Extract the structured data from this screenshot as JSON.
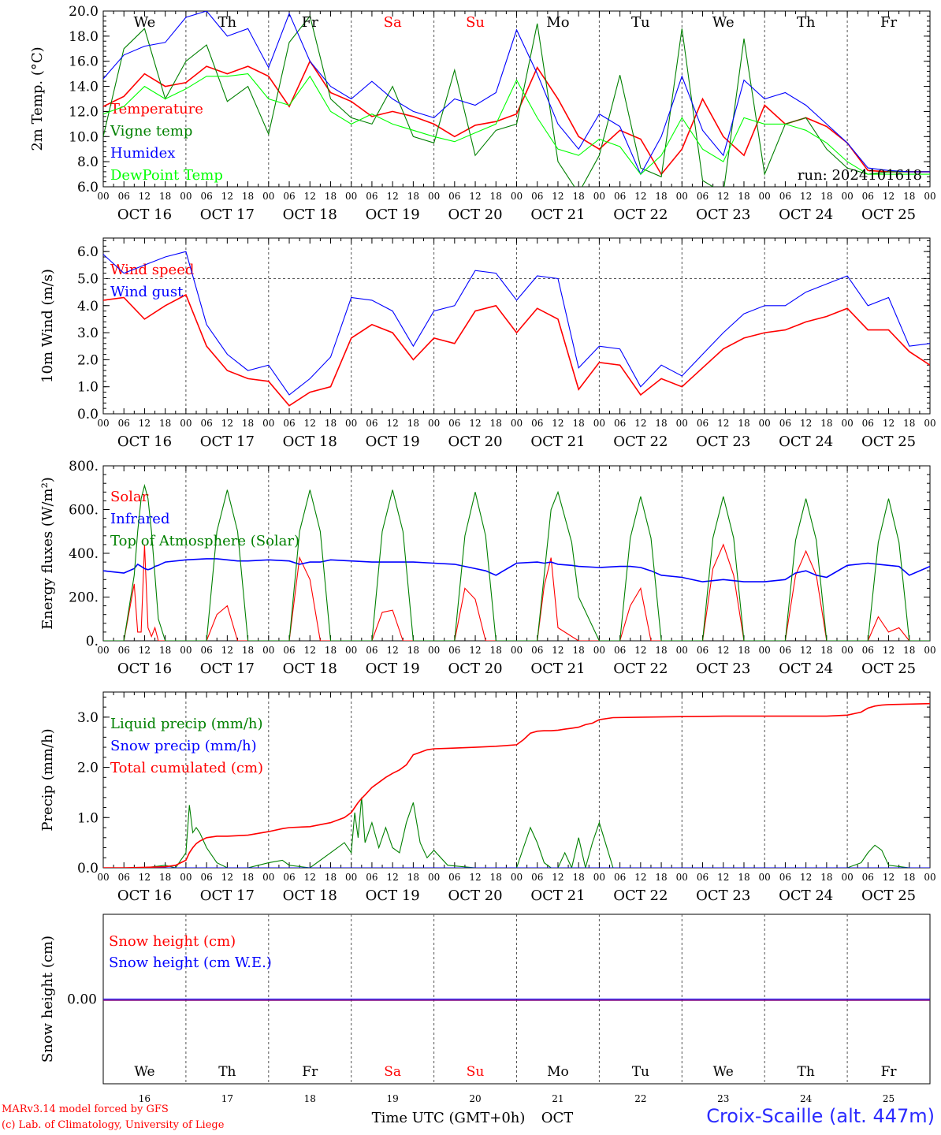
{
  "colors": {
    "temperature": "#ff0000",
    "vigne": "#008000",
    "humidex": "#0000ff",
    "dewpoint": "#00ff00",
    "weekend_text": "#ff0000",
    "station": "#2b2bff",
    "axis": "#000000"
  },
  "day_names": [
    {
      "name": "We",
      "weekend": false
    },
    {
      "name": "Th",
      "weekend": false
    },
    {
      "name": "Fr",
      "weekend": false
    },
    {
      "name": "Sa",
      "weekend": true
    },
    {
      "name": "Su",
      "weekend": true
    },
    {
      "name": "Mo",
      "weekend": false
    },
    {
      "name": "Tu",
      "weekend": false
    },
    {
      "name": "We",
      "weekend": false
    },
    {
      "name": "Th",
      "weekend": false
    },
    {
      "name": "Fr",
      "weekend": false
    }
  ],
  "date_labels": [
    "OCT 16",
    "OCT 17",
    "OCT 18",
    "OCT 19",
    "OCT 20",
    "OCT 21",
    "OCT 22",
    "OCT 23",
    "OCT 24",
    "OCT 25"
  ],
  "hour_ticks": [
    "00",
    "06",
    "12",
    "18"
  ],
  "bottom_axis": {
    "day_numbers": [
      "16",
      "17",
      "18",
      "19",
      "20",
      "21",
      "22",
      "23",
      "24",
      "25"
    ],
    "title": "Time UTC (GMT+0h)",
    "month": "OCT"
  },
  "footer": {
    "model": "MARv3.14 model forced by GFS",
    "lab": "(c) Lab. of Climatology, University of Liege",
    "station": "Croix-Scaille (alt. 447m)"
  },
  "chart_data": [
    {
      "type": "line",
      "ylabel": "2m Temp. (°C)",
      "ylim": [
        6.0,
        20.0
      ],
      "yticks": [
        "6.0",
        "8.0",
        "10.0",
        "12.0",
        "14.0",
        "16.0",
        "18.0",
        "20.0"
      ],
      "annotation": "run: 2024101618",
      "x_hours": [
        0,
        6,
        12,
        18,
        24,
        30,
        36,
        42,
        48,
        54,
        60,
        66,
        72,
        78,
        84,
        90,
        96,
        102,
        108,
        114,
        120,
        126,
        132,
        138,
        144,
        150,
        156,
        162,
        168,
        174,
        180,
        186,
        192,
        198,
        204,
        210,
        216,
        222,
        228,
        234,
        240
      ],
      "series": [
        {
          "name": "Temperature",
          "color": "#ff0000",
          "values": [
            12.4,
            13.2,
            15.0,
            14.0,
            14.3,
            15.6,
            15.0,
            15.6,
            14.8,
            12.4,
            16.0,
            13.5,
            12.8,
            11.6,
            12.0,
            11.6,
            11.0,
            10.0,
            10.9,
            11.2,
            11.8,
            15.5,
            13.0,
            10.0,
            9.0,
            10.5,
            9.8,
            7.0,
            9.0,
            13.0,
            10.0,
            8.5,
            12.5,
            11.0,
            11.5,
            10.8,
            9.5,
            7.3,
            7.2,
            7.2,
            7.2
          ]
        },
        {
          "name": "Vigne temp",
          "color": "#008000",
          "values": [
            10.0,
            17.0,
            18.6,
            13.0,
            16.0,
            17.3,
            12.8,
            14.0,
            10.2,
            17.5,
            19.6,
            13.0,
            11.5,
            11.0,
            14.0,
            10.0,
            9.5,
            15.3,
            8.5,
            10.5,
            11.0,
            19.0,
            8.0,
            5.5,
            8.5,
            14.9,
            7.5,
            6.8,
            18.6,
            6.5,
            5.5,
            17.8,
            7.0,
            11.0,
            11.5,
            9.0,
            7.5,
            7.0,
            7.2,
            7.2,
            7.2
          ]
        },
        {
          "name": "Humidex",
          "color": "#0000ff",
          "values": [
            14.6,
            16.5,
            17.2,
            17.5,
            19.5,
            20.0,
            18.0,
            18.6,
            15.5,
            19.8,
            16.0,
            14.0,
            13.0,
            14.4,
            13.0,
            12.0,
            11.5,
            13.0,
            12.5,
            13.5,
            18.5,
            15.0,
            11.0,
            9.0,
            11.8,
            10.8,
            7.0,
            10.0,
            14.8,
            10.5,
            8.5,
            14.5,
            13.0,
            13.5,
            12.5,
            11.0,
            9.5,
            7.5,
            7.3,
            7.2,
            7.2
          ]
        },
        {
          "name": "DewPoint Temp",
          "color": "#00ff00",
          "values": [
            11.8,
            12.4,
            14.0,
            13.0,
            13.8,
            14.8,
            14.8,
            15.0,
            13.0,
            12.5,
            14.8,
            12.0,
            11.0,
            11.8,
            11.0,
            10.5,
            10.0,
            9.6,
            10.3,
            11.0,
            14.5,
            11.5,
            9.0,
            8.5,
            9.8,
            9.2,
            7.0,
            8.5,
            11.5,
            9.0,
            8.0,
            11.5,
            11.0,
            11.0,
            10.5,
            9.5,
            8.0,
            7.0,
            7.0,
            7.0,
            7.0
          ]
        }
      ]
    },
    {
      "type": "line",
      "ylabel": "10m Wind (m/s)",
      "ylim": [
        0.0,
        6.5
      ],
      "yticks": [
        "0.0",
        "1.0",
        "2.0",
        "3.0",
        "4.0",
        "5.0",
        "6.0"
      ],
      "reference_line": 5.0,
      "x_hours": [
        0,
        6,
        12,
        18,
        24,
        30,
        36,
        42,
        48,
        54,
        60,
        66,
        72,
        78,
        84,
        90,
        96,
        102,
        108,
        114,
        120,
        126,
        132,
        138,
        144,
        150,
        156,
        162,
        168,
        174,
        180,
        186,
        192,
        198,
        204,
        210,
        216,
        222,
        228,
        234,
        240
      ],
      "series": [
        {
          "name": "Wind speed",
          "color": "#ff0000",
          "values": [
            4.2,
            4.3,
            3.5,
            4.0,
            4.4,
            2.5,
            1.6,
            1.3,
            1.2,
            0.3,
            0.8,
            1.0,
            2.8,
            3.3,
            3.0,
            2.0,
            2.8,
            2.6,
            3.8,
            4.0,
            3.0,
            3.9,
            3.5,
            0.9,
            1.9,
            1.8,
            0.7,
            1.3,
            1.0,
            1.7,
            2.4,
            2.8,
            3.0,
            3.1,
            3.4,
            3.6,
            3.9,
            3.1,
            3.1,
            2.3,
            1.8
          ]
        },
        {
          "name": "Wind gust",
          "color": "#0000ff",
          "values": [
            5.9,
            5.2,
            5.5,
            5.8,
            6.0,
            3.3,
            2.2,
            1.6,
            1.8,
            0.7,
            1.3,
            2.1,
            4.3,
            4.2,
            3.8,
            2.5,
            3.8,
            4.0,
            5.3,
            5.2,
            4.2,
            5.1,
            5.0,
            1.7,
            2.5,
            2.4,
            1.0,
            1.8,
            1.4,
            2.2,
            3.0,
            3.7,
            4.0,
            4.0,
            4.5,
            4.8,
            5.1,
            4.0,
            4.3,
            2.5,
            2.6
          ]
        }
      ]
    },
    {
      "type": "line",
      "ylabel": "Energy fluxes (W/m²)",
      "ylim": [
        0,
        800
      ],
      "yticks": [
        "0.",
        "200.",
        "400.",
        "600.",
        "800."
      ],
      "x_hours": [
        0,
        6,
        9,
        10,
        11,
        12,
        13,
        14,
        15,
        16,
        18,
        24,
        30,
        33,
        36,
        39,
        42,
        48,
        54,
        57,
        60,
        63,
        66,
        72,
        78,
        81,
        84,
        87,
        90,
        96,
        102,
        105,
        108,
        111,
        114,
        120,
        126,
        128,
        130,
        132,
        136,
        138,
        144,
        150,
        153,
        156,
        159,
        162,
        168,
        174,
        177,
        180,
        183,
        186,
        192,
        198,
        201,
        204,
        207,
        210,
        216,
        222,
        225,
        228,
        231,
        234,
        240
      ],
      "series": [
        {
          "name": "Solar",
          "color": "#ff0000",
          "values": [
            0,
            0,
            260,
            40,
            40,
            440,
            60,
            20,
            60,
            0,
            0,
            0,
            0,
            120,
            160,
            0,
            0,
            0,
            0,
            380,
            280,
            0,
            0,
            0,
            0,
            130,
            140,
            0,
            0,
            0,
            0,
            240,
            190,
            0,
            0,
            0,
            0,
            250,
            380,
            60,
            20,
            0,
            0,
            0,
            160,
            240,
            0,
            0,
            0,
            0,
            330,
            440,
            300,
            0,
            0,
            0,
            300,
            410,
            300,
            0,
            0,
            0,
            110,
            40,
            60,
            0,
            0
          ]
        },
        {
          "name": "Infrared",
          "color": "#0000ff",
          "values": [
            320,
            310,
            330,
            350,
            340,
            330,
            325,
            330,
            340,
            345,
            360,
            370,
            375,
            375,
            370,
            365,
            365,
            370,
            365,
            350,
            360,
            360,
            370,
            365,
            360,
            360,
            360,
            360,
            360,
            355,
            350,
            340,
            330,
            320,
            300,
            355,
            360,
            355,
            360,
            350,
            345,
            340,
            335,
            340,
            340,
            335,
            320,
            300,
            290,
            270,
            275,
            280,
            275,
            270,
            270,
            280,
            310,
            320,
            300,
            290,
            345,
            355,
            350,
            345,
            340,
            300,
            340
          ]
        },
        {
          "name": "Top of Atmosphere (Solar)",
          "color": "#008000",
          "values": [
            0,
            0,
            300,
            500,
            650,
            710,
            650,
            500,
            300,
            100,
            0,
            0,
            0,
            500,
            690,
            500,
            0,
            0,
            0,
            500,
            690,
            500,
            0,
            0,
            0,
            500,
            690,
            500,
            0,
            0,
            0,
            480,
            680,
            480,
            0,
            0,
            0,
            300,
            600,
            680,
            450,
            200,
            0,
            0,
            470,
            660,
            470,
            0,
            0,
            0,
            470,
            660,
            470,
            0,
            0,
            0,
            460,
            650,
            460,
            0,
            0,
            0,
            450,
            650,
            450,
            0,
            0
          ]
        }
      ]
    },
    {
      "type": "line",
      "ylabel": "Precip (mm/h)",
      "ylim": [
        0.0,
        3.5
      ],
      "yticks": [
        "0.0",
        "1.0",
        "2.0",
        "3.0"
      ],
      "x_hours": [
        0,
        6,
        12,
        18,
        21,
        24,
        25,
        26,
        27,
        28,
        30,
        33,
        36,
        42,
        48,
        52,
        54,
        60,
        66,
        70,
        72,
        73,
        74,
        75,
        76,
        78,
        80,
        82,
        84,
        86,
        88,
        90,
        92,
        94,
        96,
        100,
        108,
        114,
        120,
        122,
        124,
        126,
        128,
        130,
        132,
        134,
        136,
        138,
        140,
        142,
        144,
        148,
        156,
        168,
        180,
        192,
        210,
        216,
        220,
        222,
        224,
        226,
        228,
        234,
        240
      ],
      "series": [
        {
          "name": "Liquid precip (mm/h)",
          "color": "#008000",
          "values": [
            0.0,
            0.0,
            0.0,
            0.05,
            0.0,
            0.3,
            1.25,
            0.7,
            0.8,
            0.7,
            0.4,
            0.1,
            0.0,
            0.0,
            0.1,
            0.15,
            0.05,
            0.0,
            0.3,
            0.5,
            0.3,
            1.1,
            0.6,
            1.4,
            0.5,
            0.9,
            0.4,
            0.8,
            0.4,
            0.3,
            0.9,
            1.3,
            0.5,
            0.2,
            0.35,
            0.05,
            0.0,
            0.0,
            0.0,
            0.4,
            0.8,
            0.5,
            0.1,
            0.0,
            0.0,
            0.3,
            0.0,
            0.6,
            0.0,
            0.5,
            0.9,
            0.0,
            0.0,
            0.0,
            0.0,
            0.0,
            0.0,
            0.0,
            0.1,
            0.3,
            0.45,
            0.35,
            0.05,
            0.0,
            0.0
          ]
        },
        {
          "name": "Snow precip (mm/h)",
          "color": "#0000ff",
          "values": [
            0,
            0,
            0,
            0,
            0,
            0,
            0,
            0,
            0,
            0,
            0,
            0,
            0,
            0,
            0,
            0,
            0,
            0,
            0,
            0,
            0,
            0,
            0,
            0,
            0,
            0,
            0,
            0,
            0,
            0,
            0,
            0,
            0,
            0,
            0,
            0,
            0,
            0,
            0,
            0,
            0,
            0,
            0,
            0,
            0,
            0,
            0,
            0,
            0,
            0,
            0,
            0,
            0,
            0,
            0,
            0,
            0,
            0,
            0,
            0,
            0,
            0,
            0,
            0,
            0
          ]
        },
        {
          "name": "Total cumulated (cm)",
          "color": "#ff0000",
          "values": [
            0.0,
            0.0,
            0.01,
            0.02,
            0.05,
            0.15,
            0.3,
            0.4,
            0.48,
            0.53,
            0.6,
            0.63,
            0.63,
            0.65,
            0.72,
            0.78,
            0.8,
            0.82,
            0.9,
            1.0,
            1.1,
            1.2,
            1.3,
            1.38,
            1.45,
            1.6,
            1.7,
            1.8,
            1.88,
            1.95,
            2.05,
            2.25,
            2.3,
            2.35,
            2.37,
            2.38,
            2.4,
            2.42,
            2.45,
            2.55,
            2.68,
            2.72,
            2.73,
            2.73,
            2.74,
            2.76,
            2.78,
            2.8,
            2.85,
            2.88,
            2.95,
            2.99,
            3.0,
            3.01,
            3.02,
            3.02,
            3.02,
            3.04,
            3.1,
            3.18,
            3.22,
            3.24,
            3.25,
            3.26,
            3.27
          ]
        }
      ]
    },
    {
      "type": "line",
      "ylabel": "Snow height (cm)",
      "ylim": [
        -1.0,
        1.0
      ],
      "yticks": [
        "0.00"
      ],
      "x_hours": [
        0,
        240
      ],
      "series": [
        {
          "name": "Snow height (cm)",
          "color": "#ff0000",
          "values": [
            0.0,
            0.0
          ]
        },
        {
          "name": "Snow height (cm W.E.)",
          "color": "#0000ff",
          "values": [
            0.0,
            0.0
          ]
        }
      ]
    }
  ]
}
